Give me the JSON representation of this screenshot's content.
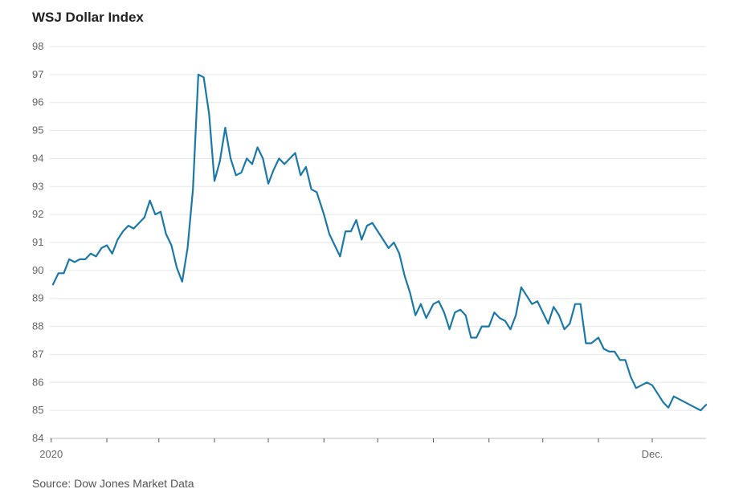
{
  "chart_data": {
    "type": "line",
    "title": "WSJ Dollar Index",
    "source": "Source: Dow Jones Market Data",
    "xlabel": "",
    "ylabel": "",
    "ylim": [
      84,
      98
    ],
    "yticks": [
      84,
      85,
      86,
      87,
      88,
      89,
      90,
      91,
      92,
      93,
      94,
      95,
      96,
      97,
      98
    ],
    "xlim": [
      "2020-01-02",
      "2020-12-31"
    ],
    "xticks": [
      {
        "date": "2020-01-01",
        "label": "2020"
      },
      {
        "date": "2020-02-01",
        "label": ""
      },
      {
        "date": "2020-03-01",
        "label": ""
      },
      {
        "date": "2020-04-01",
        "label": ""
      },
      {
        "date": "2020-05-01",
        "label": ""
      },
      {
        "date": "2020-06-01",
        "label": ""
      },
      {
        "date": "2020-07-01",
        "label": ""
      },
      {
        "date": "2020-08-01",
        "label": ""
      },
      {
        "date": "2020-09-01",
        "label": ""
      },
      {
        "date": "2020-10-01",
        "label": ""
      },
      {
        "date": "2020-11-01",
        "label": ""
      },
      {
        "date": "2020-12-01",
        "label": "Dec."
      }
    ],
    "grid": true,
    "color": "#1b78a8",
    "series": [
      {
        "name": "",
        "x": [
          "2020-01-02",
          "2020-01-05",
          "2020-01-08",
          "2020-01-11",
          "2020-01-14",
          "2020-01-17",
          "2020-01-20",
          "2020-01-23",
          "2020-01-26",
          "2020-01-29",
          "2020-02-01",
          "2020-02-04",
          "2020-02-07",
          "2020-02-10",
          "2020-02-13",
          "2020-02-16",
          "2020-02-19",
          "2020-02-22",
          "2020-02-25",
          "2020-02-28",
          "2020-03-02",
          "2020-03-05",
          "2020-03-08",
          "2020-03-11",
          "2020-03-14",
          "2020-03-17",
          "2020-03-20",
          "2020-03-23",
          "2020-03-26",
          "2020-03-29",
          "2020-04-01",
          "2020-04-04",
          "2020-04-07",
          "2020-04-10",
          "2020-04-13",
          "2020-04-16",
          "2020-04-19",
          "2020-04-22",
          "2020-04-25",
          "2020-04-28",
          "2020-05-01",
          "2020-05-04",
          "2020-05-07",
          "2020-05-10",
          "2020-05-13",
          "2020-05-16",
          "2020-05-19",
          "2020-05-22",
          "2020-05-25",
          "2020-05-28",
          "2020-06-01",
          "2020-06-04",
          "2020-06-07",
          "2020-06-10",
          "2020-06-13",
          "2020-06-16",
          "2020-06-19",
          "2020-06-22",
          "2020-06-25",
          "2020-06-28",
          "2020-07-01",
          "2020-07-04",
          "2020-07-07",
          "2020-07-10",
          "2020-07-13",
          "2020-07-16",
          "2020-07-19",
          "2020-07-22",
          "2020-07-25",
          "2020-07-28",
          "2020-08-01",
          "2020-08-04",
          "2020-08-07",
          "2020-08-10",
          "2020-08-13",
          "2020-08-16",
          "2020-08-19",
          "2020-08-22",
          "2020-08-25",
          "2020-08-28",
          "2020-09-01",
          "2020-09-04",
          "2020-09-07",
          "2020-09-10",
          "2020-09-13",
          "2020-09-16",
          "2020-09-19",
          "2020-09-22",
          "2020-09-25",
          "2020-09-28",
          "2020-10-01",
          "2020-10-04",
          "2020-10-07",
          "2020-10-10",
          "2020-10-13",
          "2020-10-16",
          "2020-10-19",
          "2020-10-22",
          "2020-10-25",
          "2020-10-28",
          "2020-11-01",
          "2020-11-04",
          "2020-11-07",
          "2020-11-10",
          "2020-11-13",
          "2020-11-16",
          "2020-11-19",
          "2020-11-22",
          "2020-11-25",
          "2020-11-28",
          "2020-12-01",
          "2020-12-04",
          "2020-12-07",
          "2020-12-10",
          "2020-12-13",
          "2020-12-16",
          "2020-12-19",
          "2020-12-22",
          "2020-12-25",
          "2020-12-28",
          "2020-12-31"
        ],
        "y": [
          89.5,
          89.9,
          89.9,
          90.4,
          90.3,
          90.4,
          90.4,
          90.6,
          90.5,
          90.8,
          90.9,
          90.6,
          91.1,
          91.4,
          91.6,
          91.5,
          91.7,
          91.9,
          92.5,
          92.0,
          92.1,
          91.3,
          90.9,
          90.1,
          89.6,
          90.8,
          92.9,
          97.0,
          96.9,
          95.6,
          93.2,
          93.9,
          95.1,
          94.0,
          93.4,
          93.5,
          94.0,
          93.8,
          94.4,
          94.0,
          93.1,
          93.6,
          94.0,
          93.8,
          94.0,
          94.2,
          93.4,
          93.7,
          92.9,
          92.8,
          92.0,
          91.3,
          90.9,
          90.5,
          91.4,
          91.4,
          91.8,
          91.1,
          91.6,
          91.7,
          91.4,
          91.1,
          90.8,
          91.0,
          90.6,
          89.8,
          89.2,
          88.4,
          88.8,
          88.3,
          88.8,
          88.9,
          88.5,
          87.9,
          88.5,
          88.6,
          88.4,
          87.6,
          87.6,
          88.0,
          88.0,
          88.5,
          88.3,
          88.2,
          87.9,
          88.4,
          89.4,
          89.1,
          88.8,
          88.9,
          88.5,
          88.1,
          88.7,
          88.4,
          87.9,
          88.1,
          88.8,
          88.8,
          87.4,
          87.4,
          87.6,
          87.2,
          87.1,
          87.1,
          86.8,
          86.8,
          86.2,
          85.8,
          85.9,
          86.0,
          85.9,
          85.6,
          85.3,
          85.1,
          85.5,
          85.4,
          85.3,
          85.2,
          85.1,
          85.0,
          85.2
        ]
      }
    ]
  }
}
